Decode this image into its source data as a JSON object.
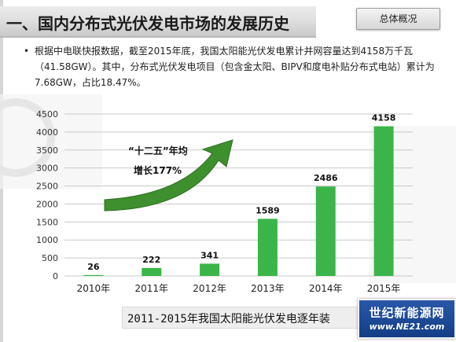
{
  "header": {
    "title": "一、国内分布式光伏发电市场的发展历史",
    "tab_label": "总体概况"
  },
  "bullet": {
    "text": "根据中电联快报数据，截至2015年底，我国太阳能光伏发电累计并网容量达到4158万千瓦（41.58GW）。其中，分布式光伏发电项目（包含金太阳、BIPV和度电补贴分布式电站）累计为7.68GW，占比18.47%。"
  },
  "annotation": {
    "line1": "“十二五”年均",
    "line2": "增长177%"
  },
  "caption": "2011-2015年我国太阳能光伏发电逐年装",
  "logo": {
    "name": "世纪新能源网",
    "url": "www.NE21.com"
  },
  "colors": {
    "bar": "#3bb54a",
    "arrow": "#3e8f2e",
    "grid": "#c9c9c9"
  },
  "chart_data": {
    "type": "bar",
    "categories": [
      "2010年",
      "2011年",
      "2012年",
      "2013年",
      "2014年",
      "2015年"
    ],
    "values": [
      26,
      222,
      341,
      1589,
      2486,
      4158
    ],
    "data_labels": [
      "26",
      "222",
      "341",
      "1589",
      "2486",
      "4158"
    ],
    "yticks": [
      "0",
      "500",
      "1000",
      "1500",
      "2000",
      "2500",
      "3000",
      "3500",
      "4000",
      "4500"
    ],
    "ylim": [
      0,
      4500
    ],
    "grid": true,
    "title": "2011-2015年我国太阳能光伏发电逐年装"
  }
}
